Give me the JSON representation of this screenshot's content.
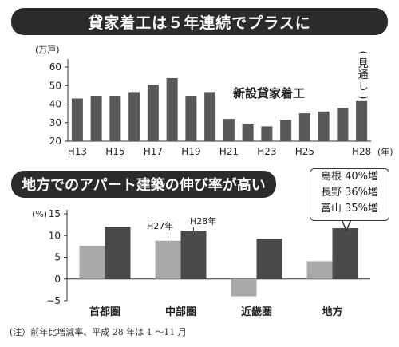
{
  "chart_data": [
    {
      "type": "bar",
      "title": "貸家着工は５年連続でプラスに",
      "unit": "(万戸)",
      "series_label": "新設貸家着工",
      "annotation": "(見通し)",
      "categories": [
        "H13",
        "H14",
        "H15",
        "H16",
        "H17",
        "H18",
        "H19",
        "H20",
        "H21",
        "H22",
        "H23",
        "H24",
        "H25",
        "H26",
        "H27",
        "H28"
      ],
      "tick_labels": [
        "H13",
        "",
        "H15",
        "",
        "H17",
        "",
        "H19",
        "",
        "H21",
        "",
        "H23",
        "",
        "H25",
        "",
        "",
        "H28"
      ],
      "x_unit": "(年)",
      "values": [
        43,
        44.5,
        44.5,
        46.5,
        50.5,
        54,
        44.5,
        46.5,
        32,
        29.5,
        28,
        31.5,
        35,
        36,
        38,
        42
      ],
      "ylim": [
        20,
        60
      ],
      "yticks": [
        20,
        30,
        40,
        50,
        60
      ],
      "grid": false
    },
    {
      "type": "bar",
      "title": "地方でのアパート建築の伸び率が高い",
      "unit": "(%)",
      "categories": [
        "首都圏",
        "中部圏",
        "近畿圏",
        "地方"
      ],
      "series": [
        {
          "name": "H27年",
          "values": [
            7.6,
            8.8,
            -4.0,
            4.1
          ]
        },
        {
          "name": "H28年",
          "values": [
            12.0,
            11.1,
            9.3,
            11.7
          ]
        }
      ],
      "ylim": [
        -5,
        15
      ],
      "yticks": [
        -5,
        0,
        5,
        10,
        15
      ],
      "callout": [
        "島根 40%増",
        "長野 36%増",
        "富山 35%増"
      ],
      "footnote": "(注）前年比増減率、平成 28 年は 1 ～11 月",
      "colors": {
        "H27年": "#a9a9a9",
        "H28年": "#4a4a4a"
      }
    }
  ]
}
